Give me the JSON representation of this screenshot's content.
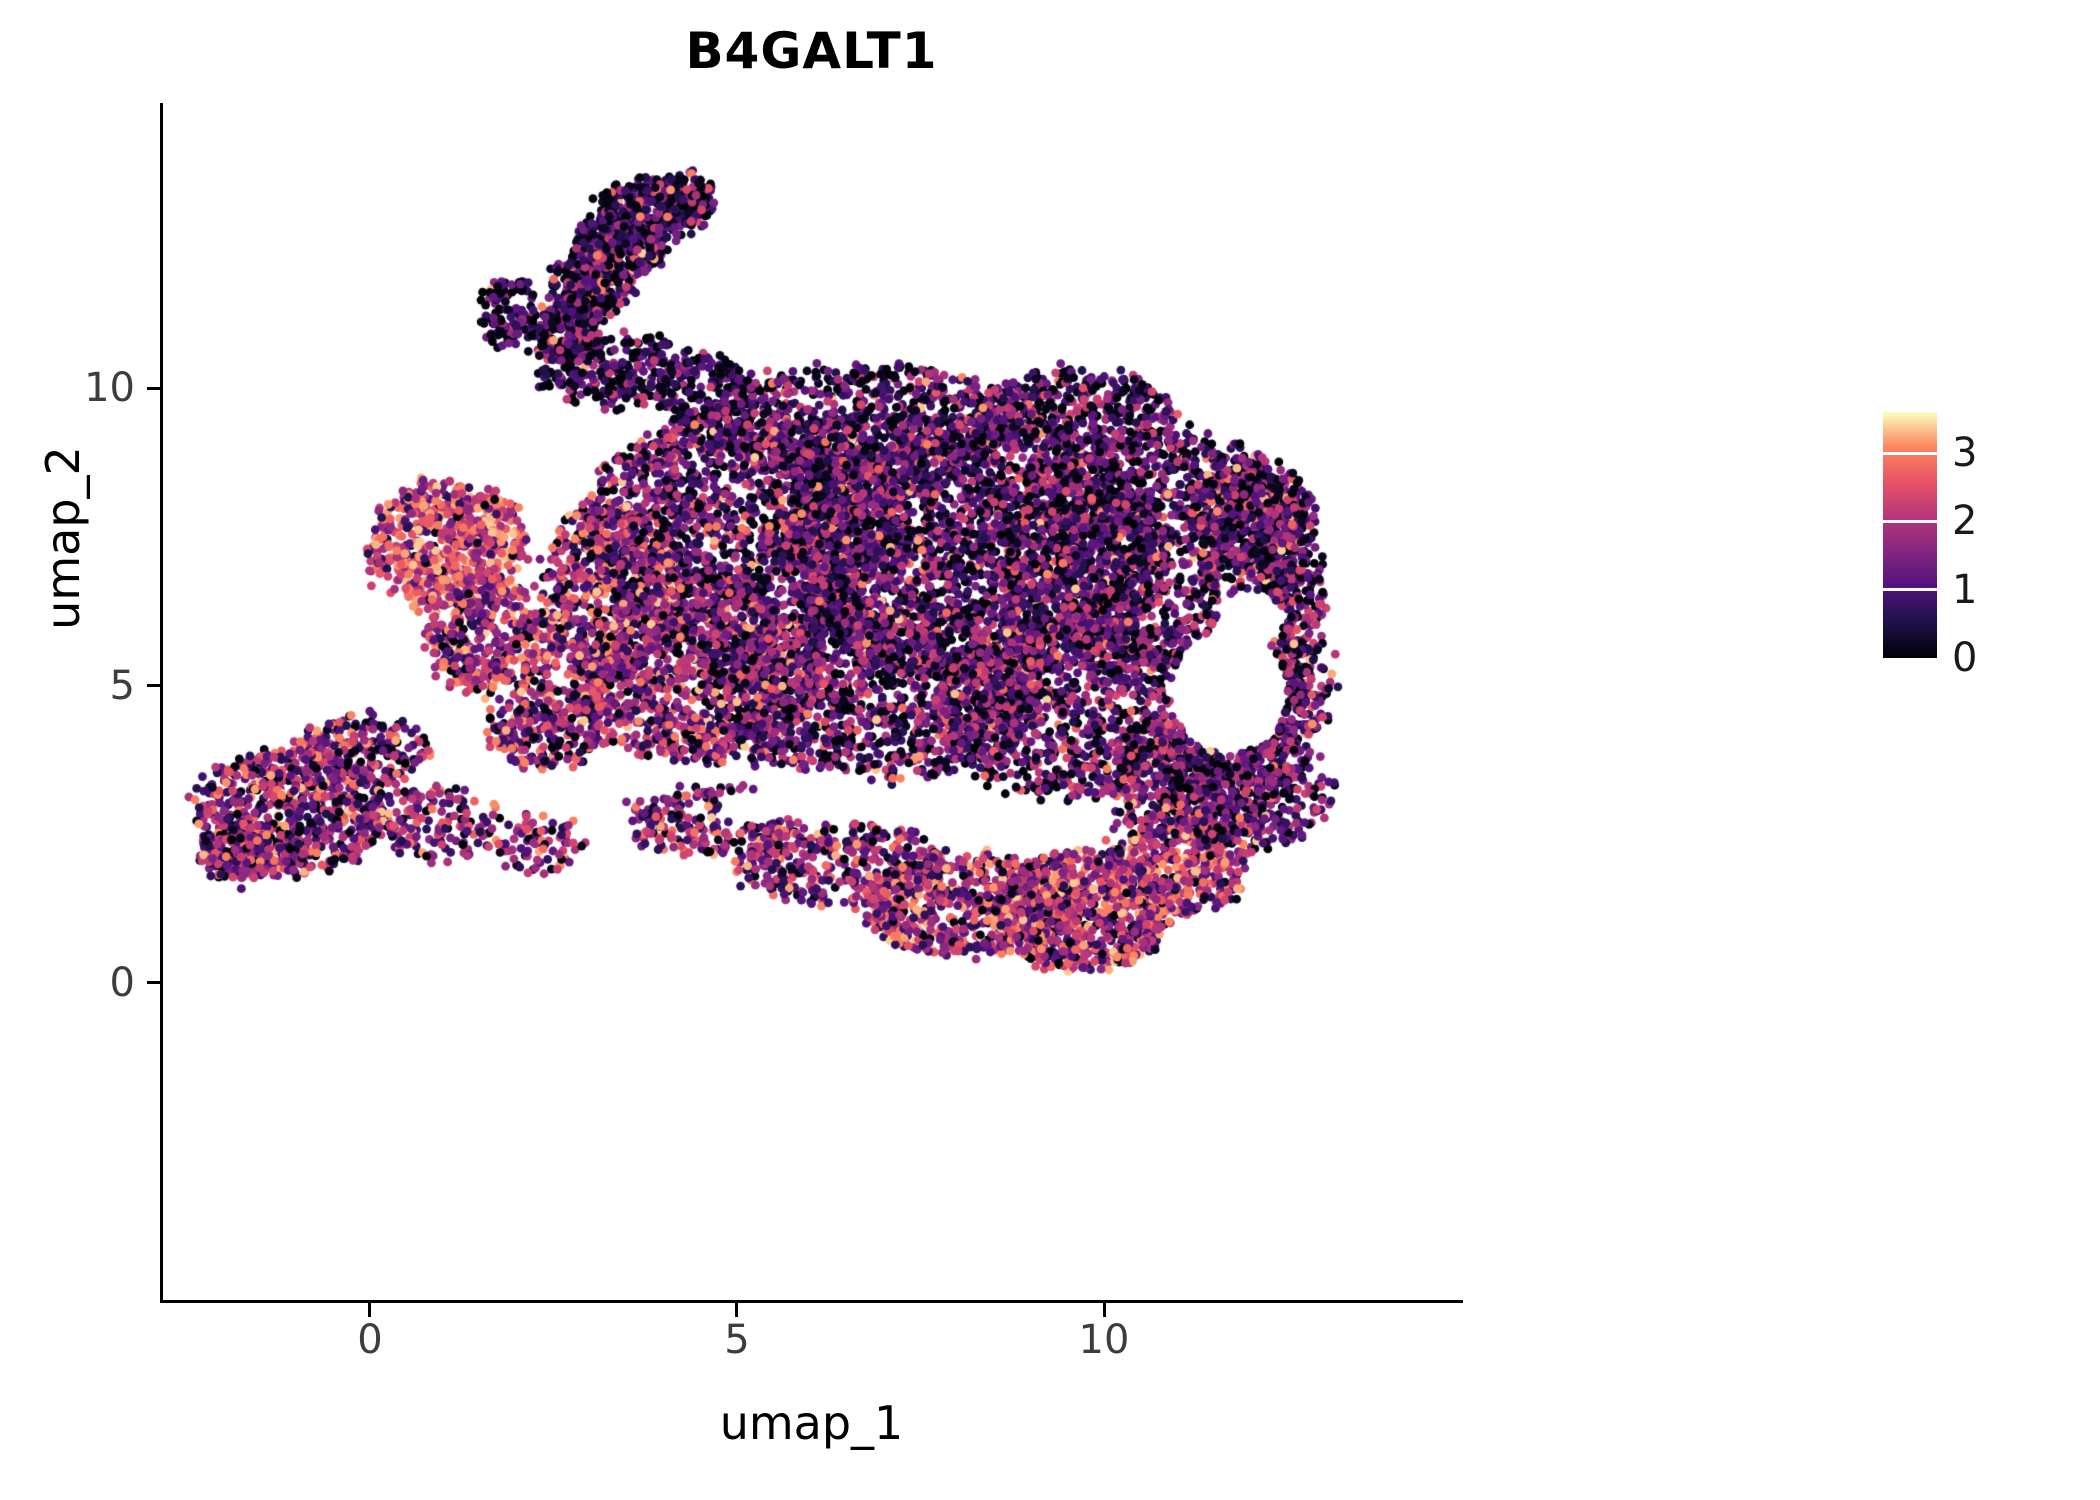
{
  "chart_data": {
    "type": "scatter",
    "title": "B4GALT1",
    "xlabel": "umap_1",
    "ylabel": "umap_2",
    "x_ticks": [
      0,
      5,
      10
    ],
    "y_ticks": [
      0,
      5,
      10
    ],
    "xlim": [
      -2.82,
      14.85
    ],
    "ylim": [
      -5.33,
      14.76
    ],
    "grid": false,
    "legend": {
      "position": "right",
      "ticks": [
        3,
        2,
        1,
        0
      ],
      "max_value": 3.6
    },
    "colormap": {
      "name": "magma",
      "stops": [
        [
          0.0,
          "#000004"
        ],
        [
          0.14,
          "#1d1147"
        ],
        [
          0.29,
          "#51127c"
        ],
        [
          0.43,
          "#822681"
        ],
        [
          0.57,
          "#b63679"
        ],
        [
          0.71,
          "#e65164"
        ],
        [
          0.86,
          "#fb8861"
        ],
        [
          1.0,
          "#fcfdbf"
        ]
      ]
    },
    "point_radius_px": 4.4,
    "seed": 42,
    "value_bands": [
      [
        0.0,
        0.25
      ],
      [
        0.5,
        1.5
      ],
      [
        1.6,
        2.4
      ],
      [
        2.5,
        3.4
      ]
    ],
    "weight_profiles": {
      "std": [
        0.28,
        0.38,
        0.27,
        0.07
      ],
      "std_dark": [
        0.33,
        0.4,
        0.23,
        0.04
      ],
      "dark": [
        0.42,
        0.42,
        0.14,
        0.02
      ],
      "darker": [
        0.5,
        0.38,
        0.11,
        0.01
      ],
      "bright": [
        0.05,
        0.14,
        0.36,
        0.45
      ],
      "semibright": [
        0.1,
        0.25,
        0.39,
        0.26
      ],
      "midbright": [
        0.16,
        0.3,
        0.38,
        0.16
      ],
      "mix": [
        0.16,
        0.34,
        0.34,
        0.16
      ]
    },
    "clusters": [
      {
        "name": "spike-top-cap",
        "cx": 4.25,
        "cy": 13.3,
        "rx": 0.4,
        "ry": 0.3,
        "n": 120,
        "w": "darker"
      },
      {
        "name": "spike-top",
        "cx": 3.85,
        "cy": 13.0,
        "rx": 0.75,
        "ry": 0.5,
        "n": 380,
        "w": "dark"
      },
      {
        "name": "spike-upper",
        "cx": 3.4,
        "cy": 12.4,
        "rx": 0.6,
        "ry": 0.5,
        "n": 350,
        "w": "dark"
      },
      {
        "name": "spike-mid",
        "cx": 3.0,
        "cy": 11.7,
        "rx": 0.5,
        "ry": 0.55,
        "n": 300,
        "w": "dark"
      },
      {
        "name": "spike-stem",
        "cx": 2.65,
        "cy": 10.95,
        "rx": 0.45,
        "ry": 0.5,
        "n": 200,
        "w": "dark"
      },
      {
        "name": "spike-arm",
        "cx": 1.85,
        "cy": 11.3,
        "rx": 0.38,
        "ry": 0.55,
        "n": 110,
        "w": "darker"
      },
      {
        "name": "spike-base",
        "cx": 3.3,
        "cy": 10.3,
        "rx": 1.05,
        "ry": 0.6,
        "n": 260,
        "w": "dark"
      },
      {
        "name": "neck",
        "cx": 4.5,
        "cy": 10.0,
        "rx": 0.7,
        "ry": 0.55,
        "n": 160,
        "w": "dark"
      },
      {
        "name": "main-top",
        "cx": 6.8,
        "cy": 9.4,
        "rx": 2.2,
        "ry": 1.0,
        "n": 850,
        "w": "std_dark"
      },
      {
        "name": "main-topright",
        "cx": 9.6,
        "cy": 9.6,
        "rx": 1.3,
        "ry": 0.7,
        "n": 400,
        "w": "std_dark"
      },
      {
        "name": "main-left-upper",
        "cx": 5.1,
        "cy": 7.6,
        "rx": 2.2,
        "ry": 2.0,
        "n": 1900,
        "w": "std"
      },
      {
        "name": "main-center",
        "cx": 8.2,
        "cy": 7.3,
        "rx": 2.6,
        "ry": 2.2,
        "n": 2500,
        "w": "std_dark"
      },
      {
        "name": "main-right",
        "cx": 10.7,
        "cy": 7.3,
        "rx": 2.1,
        "ry": 2.0,
        "n": 1700,
        "w": "std_dark"
      },
      {
        "name": "right-rim",
        "cx": 12.5,
        "cy": 6.3,
        "rx": 0.45,
        "ry": 1.7,
        "n": 330,
        "w": "std"
      },
      {
        "name": "right-upper",
        "cx": 12.0,
        "cy": 7.9,
        "rx": 0.9,
        "ry": 0.9,
        "n": 380,
        "w": "std"
      },
      {
        "name": "main-left-mid",
        "cx": 4.4,
        "cy": 5.2,
        "rx": 1.7,
        "ry": 1.5,
        "n": 1100,
        "w": "midbright"
      },
      {
        "name": "main-bottom-mid",
        "cx": 6.9,
        "cy": 4.9,
        "rx": 2.3,
        "ry": 1.5,
        "n": 1300,
        "w": "std"
      },
      {
        "name": "main-bottom-right",
        "cx": 9.6,
        "cy": 4.6,
        "rx": 1.9,
        "ry": 1.5,
        "n": 1100,
        "w": "std"
      },
      {
        "name": "lower-right-band",
        "cx": 11.2,
        "cy": 3.4,
        "rx": 1.4,
        "ry": 1.0,
        "n": 450,
        "w": "std"
      },
      {
        "name": "left-band",
        "cx": 3.3,
        "cy": 6.6,
        "rx": 0.95,
        "ry": 1.5,
        "n": 550,
        "w": "semibright"
      },
      {
        "name": "left-bright",
        "cx": 1.05,
        "cy": 7.35,
        "rx": 1.05,
        "ry": 1.1,
        "n": 650,
        "w": "bright"
      },
      {
        "name": "left-bright-lower",
        "cx": 1.7,
        "cy": 5.8,
        "rx": 0.95,
        "ry": 0.95,
        "n": 400,
        "w": "semibright"
      },
      {
        "name": "left-low",
        "cx": 2.4,
        "cy": 4.3,
        "rx": 0.8,
        "ry": 0.7,
        "n": 250,
        "w": "mix"
      },
      {
        "name": "tail-1",
        "cx": 4.7,
        "cy": 2.7,
        "rx": 1.2,
        "ry": 0.6,
        "n": 260,
        "w": "mix"
      },
      {
        "name": "tail-2",
        "cx": 6.4,
        "cy": 2.0,
        "rx": 1.4,
        "ry": 0.7,
        "n": 380,
        "w": "mix"
      },
      {
        "name": "tail-3",
        "cx": 8.2,
        "cy": 1.3,
        "rx": 1.5,
        "ry": 0.85,
        "n": 650,
        "w": "semibright"
      },
      {
        "name": "tail-bright",
        "cx": 9.7,
        "cy": 1.2,
        "rx": 1.2,
        "ry": 1.0,
        "n": 800,
        "w": "semibright"
      },
      {
        "name": "tail-right",
        "cx": 11.0,
        "cy": 1.95,
        "rx": 0.9,
        "ry": 0.8,
        "n": 350,
        "w": "semibright"
      },
      {
        "name": "right-lower",
        "cx": 11.9,
        "cy": 3.3,
        "rx": 1.2,
        "ry": 1.1,
        "n": 500,
        "w": "std"
      },
      {
        "name": "right-mid-sparse",
        "cx": 12.55,
        "cy": 4.9,
        "rx": 0.55,
        "ry": 0.9,
        "n": 180,
        "w": "std"
      },
      {
        "name": "bottomleft-main",
        "cx": -1.05,
        "cy": 2.9,
        "rx": 1.3,
        "ry": 1.05,
        "n": 700,
        "w": "mix"
      },
      {
        "name": "bottomleft-upper",
        "cx": -0.1,
        "cy": 3.9,
        "rx": 0.85,
        "ry": 0.6,
        "n": 220,
        "w": "mix"
      },
      {
        "name": "bottomleft-low",
        "cx": -1.8,
        "cy": 2.15,
        "rx": 0.5,
        "ry": 0.45,
        "n": 160,
        "w": "mix"
      },
      {
        "name": "bottomleft-tail",
        "cx": 0.9,
        "cy": 2.7,
        "rx": 0.95,
        "ry": 0.6,
        "n": 160,
        "w": "mix"
      },
      {
        "name": "bridge-sparse",
        "cx": 2.35,
        "cy": 2.3,
        "rx": 0.6,
        "ry": 0.45,
        "n": 80,
        "w": "mix"
      }
    ],
    "holes": [
      {
        "cx": 11.7,
        "cy": 4.9,
        "rx": 0.8,
        "ry": 1.05
      },
      {
        "cx": 12.0,
        "cy": 6.1,
        "rx": 0.45,
        "ry": 0.5
      },
      {
        "cx": 6.2,
        "cy": 3.15,
        "rx": 0.7,
        "ry": 0.45
      },
      {
        "cx": 7.6,
        "cy": 3.0,
        "rx": 0.75,
        "ry": 0.4
      },
      {
        "cx": 8.9,
        "cy": 2.6,
        "rx": 0.55,
        "ry": 0.38
      },
      {
        "cx": 5.2,
        "cy": 2.95,
        "rx": 0.45,
        "ry": 0.3
      }
    ]
  }
}
